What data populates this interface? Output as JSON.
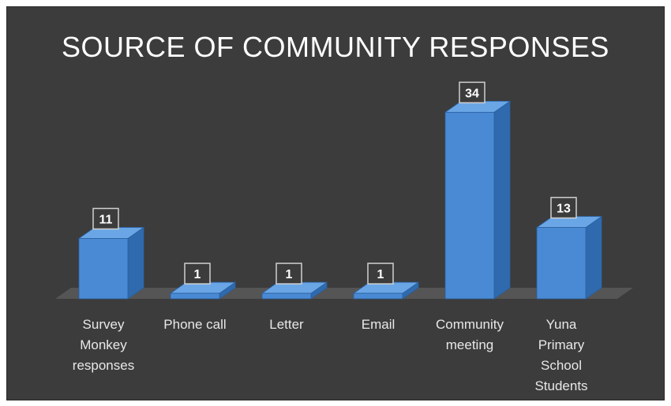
{
  "chart_data": {
    "type": "bar",
    "title": "SOURCE OF COMMUNITY RESPONSES",
    "categories": [
      "Survey Monkey responses",
      "Phone call",
      "Letter",
      "Email",
      "Community meeting",
      "Yuna Primary School Students"
    ],
    "category_lines": [
      [
        "Survey",
        "Monkey",
        "responses"
      ],
      [
        "Phone call"
      ],
      [
        "Letter"
      ],
      [
        "Email"
      ],
      [
        "Community",
        "meeting"
      ],
      [
        "Yuna",
        "Primary",
        "School",
        "Students"
      ]
    ],
    "values": [
      11,
      1,
      1,
      1,
      34,
      13
    ],
    "bar_color": "#4a8ad4",
    "background": "#3c3c3c"
  }
}
